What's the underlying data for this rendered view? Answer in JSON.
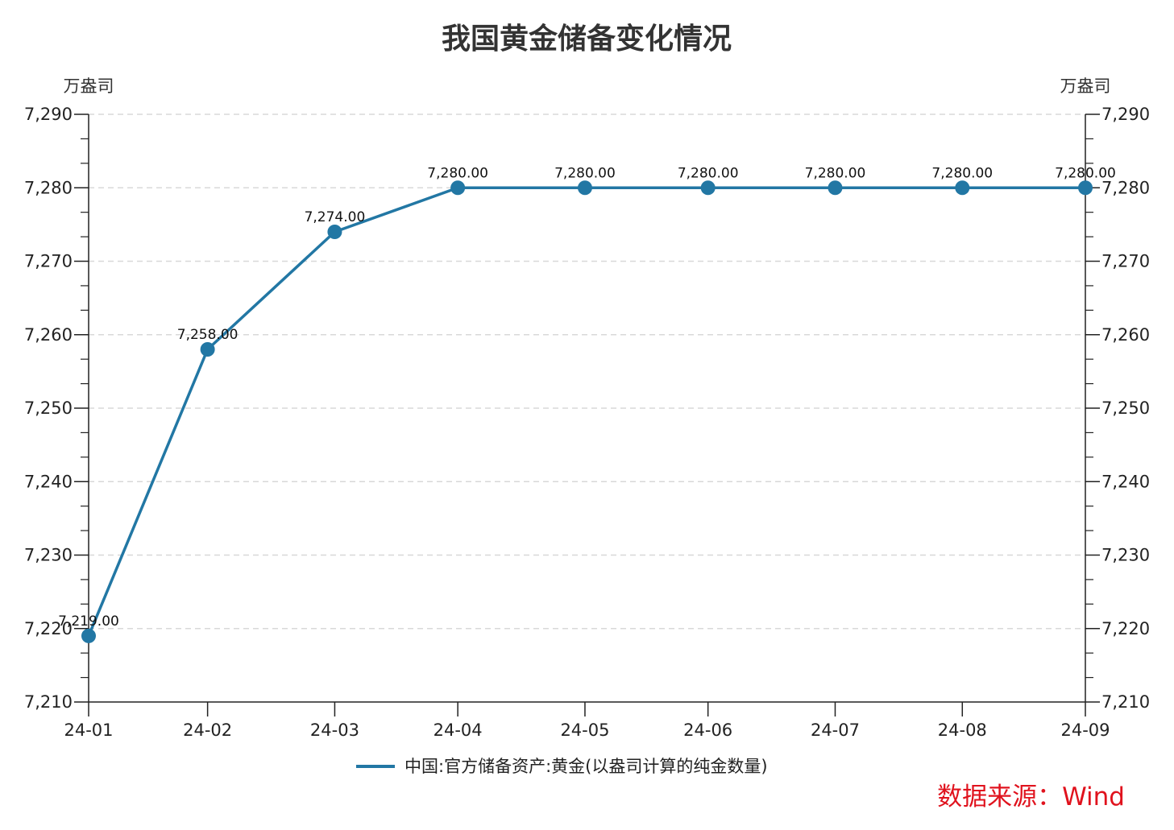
{
  "chart_data": {
    "type": "line",
    "title": "我国黄金储备变化情况",
    "ylabel_left": "万盎司",
    "ylabel_right": "万盎司",
    "ylim": [
      7210,
      7290
    ],
    "yticks": [
      7210,
      7220,
      7230,
      7240,
      7250,
      7260,
      7270,
      7280,
      7290
    ],
    "ytick_labels": [
      "7,210",
      "7,220",
      "7,230",
      "7,240",
      "7,250",
      "7,260",
      "7,270",
      "7,280",
      "7,290"
    ],
    "grid": true,
    "categories": [
      "24-01",
      "24-02",
      "24-03",
      "24-04",
      "24-05",
      "24-06",
      "24-07",
      "24-08",
      "24-09"
    ],
    "dates": [
      "2024-01-31",
      "2024-02-29",
      "2024-03-31",
      "2024-04-30",
      "2024-05-31",
      "2024-06-30",
      "2024-07-31",
      "2024-08-31",
      "2024-09-30"
    ],
    "series": [
      {
        "name": "中国:官方储备资产:黄金(以盎司计算的纯金数量)",
        "color": "#2277a4",
        "values": [
          7219,
          7258,
          7274,
          7280,
          7280,
          7280,
          7280,
          7280,
          7280
        ],
        "labels": [
          "7,219.00",
          "7,258.00",
          "7,274.00",
          "7,280.00",
          "7,280.00",
          "7,280.00",
          "7,280.00",
          "7,280.00",
          "7,280.00"
        ]
      }
    ],
    "legend_position": "bottom-center",
    "source": "数据来源：Wind"
  }
}
